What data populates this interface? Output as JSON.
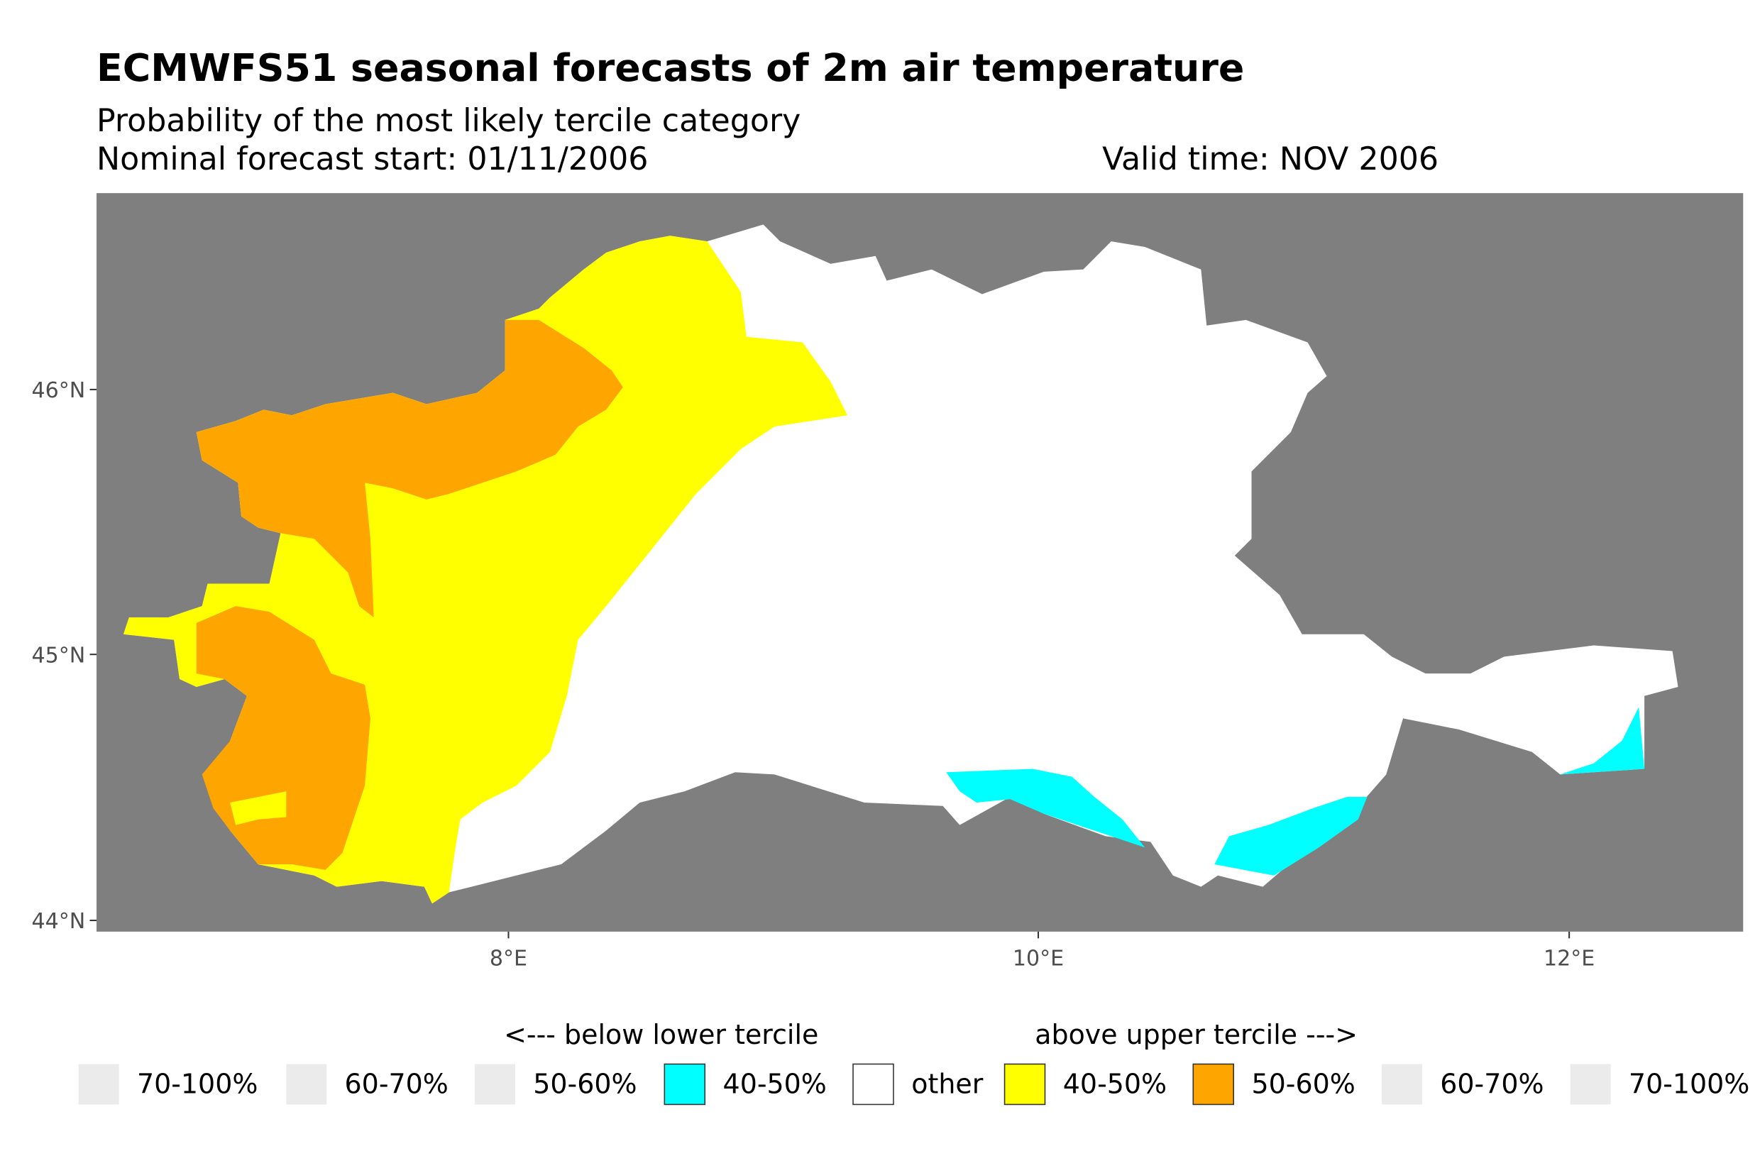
{
  "chart_data": {
    "type": "heatmap",
    "title": "ECMWFS51 seasonal forecasts of 2m air temperature",
    "subtitle": "Probability of the most likely tercile category",
    "forecast_start": "Nominal forecast start: 01/11/2006",
    "valid_time": "Valid time: NOV 2006",
    "x_ticks": [
      "8°E",
      "10°E",
      "12°E"
    ],
    "y_ticks": [
      "44°N",
      "45°N",
      "46°N"
    ],
    "xlim_deg_e": [
      6.45,
      12.65
    ],
    "ylim_deg_n": [
      43.95,
      46.73
    ],
    "background_color": "#7f7f7f",
    "grid": false,
    "legend": {
      "position": "bottom",
      "below_label": "<--- below lower tercile",
      "above_label": "above upper tercile --->",
      "items": [
        {
          "label": "70-100%",
          "color": "#ebebeb",
          "present": false
        },
        {
          "label": "60-70%",
          "color": "#ebebeb",
          "present": false
        },
        {
          "label": "50-60%",
          "color": "#ebebeb",
          "present": false
        },
        {
          "label": "40-50%",
          "color": "#00ffff",
          "present": true
        },
        {
          "label": "other",
          "color": "#ffffff",
          "present": true
        },
        {
          "label": "40-50%",
          "color": "#ffff00",
          "present": true
        },
        {
          "label": "50-60%",
          "color": "#ffa500",
          "present": true
        },
        {
          "label": "60-70%",
          "color": "#ebebeb",
          "present": false
        },
        {
          "label": "70-100%",
          "color": "#ebebeb",
          "present": false
        }
      ]
    }
  }
}
